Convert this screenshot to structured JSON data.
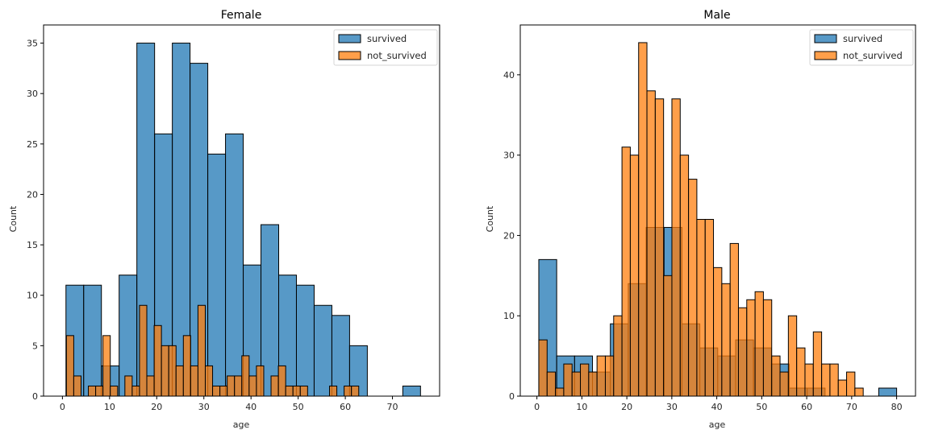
{
  "chart_data": [
    {
      "type": "bar",
      "subtype": "histogram",
      "title": "Female",
      "xlabel": "age",
      "ylabel": "Count",
      "xlim": [
        -4,
        80
      ],
      "ylim": [
        0,
        36.8
      ],
      "xticks": [
        0,
        10,
        20,
        30,
        40,
        50,
        60,
        70
      ],
      "yticks": [
        0,
        5,
        10,
        15,
        20,
        25,
        30,
        35
      ],
      "grid": false,
      "legend": "top-right",
      "series": [
        {
          "name": "survived",
          "color": "#1f77b4",
          "bin_start": 0.75,
          "bin_width": 3.76,
          "values": [
            11,
            11,
            3,
            12,
            35,
            26,
            35,
            33,
            24,
            26,
            13,
            17,
            12,
            11,
            9,
            8,
            5,
            0,
            0,
            1
          ]
        },
        {
          "name": "not_survived",
          "color": "#ff7f0e",
          "bin_start": 0.85,
          "bin_width": 1.55,
          "values": [
            6,
            2,
            0,
            1,
            1,
            6,
            1,
            0,
            2,
            1,
            9,
            2,
            7,
            5,
            5,
            3,
            6,
            3,
            9,
            3,
            1,
            1,
            2,
            2,
            4,
            2,
            3,
            0,
            2,
            3,
            1,
            1,
            1,
            0,
            0,
            0,
            1,
            0,
            1,
            1
          ]
        }
      ]
    },
    {
      "type": "bar",
      "subtype": "histogram",
      "title": "Male",
      "xlabel": "age",
      "ylabel": "Count",
      "xlim": [
        -3.7,
        84.2
      ],
      "ylim": [
        0,
        46.2
      ],
      "xticks": [
        0,
        10,
        20,
        30,
        40,
        50,
        60,
        70,
        80
      ],
      "yticks": [
        0,
        10,
        20,
        30,
        40
      ],
      "grid": false,
      "legend": "top-right",
      "series": [
        {
          "name": "survived",
          "color": "#1f77b4",
          "bin_start": 0.42,
          "bin_width": 3.979,
          "values": [
            17,
            5,
            5,
            3,
            9,
            14,
            21,
            21,
            9,
            6,
            5,
            7,
            6,
            4,
            1,
            1,
            0,
            0,
            0,
            1
          ]
        },
        {
          "name": "not_survived",
          "color": "#ff7f0e",
          "bin_start": 0.42,
          "bin_width": 1.85,
          "values": [
            7,
            3,
            1,
            4,
            3,
            4,
            3,
            5,
            5,
            10,
            31,
            30,
            44,
            38,
            37,
            15,
            37,
            30,
            27,
            22,
            22,
            16,
            14,
            19,
            11,
            12,
            13,
            12,
            5,
            3,
            10,
            6,
            4,
            8,
            4,
            4,
            2,
            3,
            1,
            0
          ]
        }
      ]
    }
  ]
}
